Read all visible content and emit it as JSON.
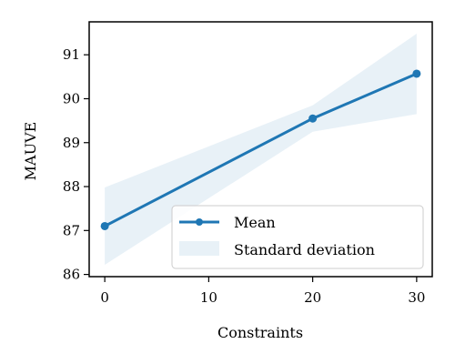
{
  "chart_data": {
    "type": "line",
    "xlabel": "Constraints",
    "ylabel": "MAUVE",
    "xlim": [
      -1.5,
      31.5
    ],
    "ylim": [
      85.95,
      91.75
    ],
    "xticks": [
      0,
      10,
      20,
      30
    ],
    "yticks": [
      86,
      87,
      88,
      89,
      90,
      91
    ],
    "grid": false,
    "legend_position": "lower-right",
    "series": [
      {
        "name": "Mean",
        "color": "#1f77b4",
        "x": [
          0,
          20,
          30
        ],
        "values": [
          87.1,
          89.55,
          90.57
        ],
        "marker": "circle"
      }
    ],
    "band": {
      "name": "Standard deviation",
      "color": "#1f77b4",
      "opacity": 0.1,
      "x": [
        0,
        20,
        30
      ],
      "lower": [
        86.22,
        89.25,
        89.65
      ],
      "upper": [
        87.98,
        89.85,
        91.48
      ]
    }
  }
}
